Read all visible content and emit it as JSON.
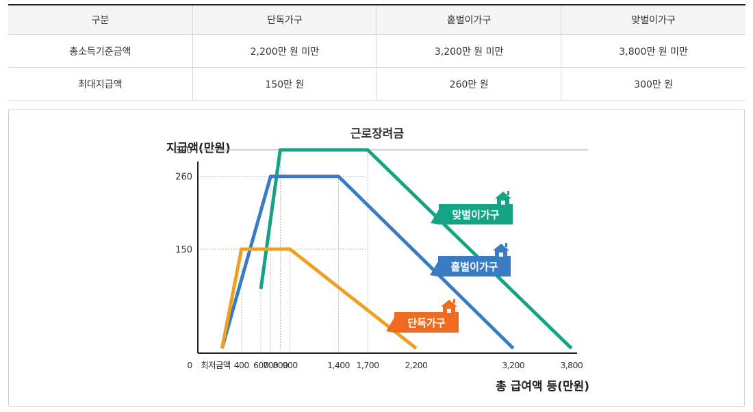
{
  "table": {
    "headers": [
      "구분",
      "단독가구",
      "홑벌이가구",
      "맞벌이가구"
    ],
    "rows": [
      [
        "총소득기준금액",
        "2,200만 원 미만",
        "3,200만 원 미만",
        "3,800만 원 미만"
      ],
      [
        "최대지급액",
        "150만 원",
        "260만 원",
        "300만 원"
      ]
    ]
  },
  "chart_data": {
    "type": "line",
    "title": "근로장려금",
    "ylabel": "지급액(만원)",
    "xlabel": "총 급여액 등(만원)",
    "x_ticks": [
      {
        "value": 0,
        "label": "0"
      },
      {
        "value": 200,
        "label": "최저금액"
      },
      {
        "value": 400,
        "label": "400"
      },
      {
        "value": 600,
        "label": "600"
      },
      {
        "value": 700,
        "label": "700"
      },
      {
        "value": 800,
        "label": "800"
      },
      {
        "value": 900,
        "label": "900"
      },
      {
        "value": 1400,
        "label": "1,400"
      },
      {
        "value": 1700,
        "label": "1,700"
      },
      {
        "value": 2200,
        "label": "2,200"
      },
      {
        "value": 3200,
        "label": "3,200"
      },
      {
        "value": 3800,
        "label": "3,800"
      }
    ],
    "y_ticks": [
      150,
      260,
      300
    ],
    "xlim": [
      0,
      3800
    ],
    "ylim": [
      0,
      320
    ],
    "series": [
      {
        "name": "맞벌이가구",
        "color": "#14a384",
        "points": [
          [
            600,
            90
          ],
          [
            800,
            300
          ],
          [
            1700,
            300
          ],
          [
            3800,
            0
          ]
        ]
      },
      {
        "name": "홑벌이가구",
        "color": "#3a7cc3",
        "points": [
          [
            200,
            0
          ],
          [
            700,
            260
          ],
          [
            1400,
            260
          ],
          [
            3200,
            0
          ]
        ]
      },
      {
        "name": "단독가구",
        "color": "#f0a020",
        "points": [
          [
            200,
            0
          ],
          [
            400,
            150
          ],
          [
            900,
            150
          ],
          [
            2200,
            0
          ]
        ]
      }
    ],
    "callouts": [
      {
        "series": "맞벌이가구",
        "color": "#14a384"
      },
      {
        "series": "홑벌이가구",
        "color": "#3a7cc3"
      },
      {
        "series": "단독가구",
        "color": "#f06b20"
      }
    ]
  }
}
